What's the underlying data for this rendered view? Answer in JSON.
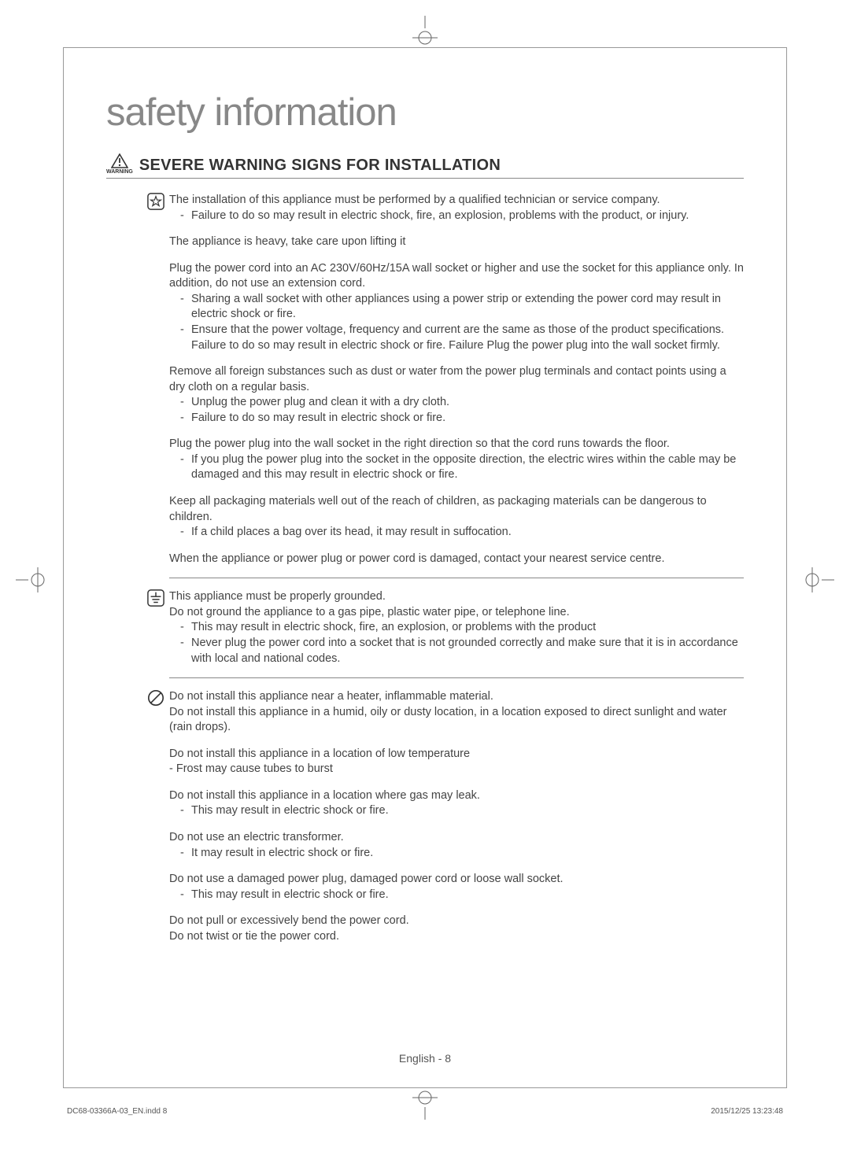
{
  "page": {
    "title": "safety information",
    "title_color": "#888888",
    "title_fontsize": 49
  },
  "section": {
    "warning_label": "WARNING",
    "heading": "SEVERE WARNING SIGNS FOR INSTALLATION"
  },
  "blocks": [
    {
      "icon": "star-box",
      "paragraphs": [
        {
          "text": "The installation of this appliance must be performed by a qualified technician or service company.",
          "subs": [
            "Failure to do so may result in electric shock, fire, an explosion, problems with the product, or injury."
          ]
        },
        {
          "text": "The appliance is heavy, take care upon lifting it",
          "subs": []
        },
        {
          "text": "Plug the power cord into an AC 230V/60Hz/15A wall socket or higher and use the socket for this appliance only. In addition, do not use an extension cord.",
          "subs": [
            "Sharing a wall socket with other appliances using a power strip or extending the power cord may result in electric shock or fire.",
            "Ensure that the power voltage, frequency and current are the same as those of the product specifications. Failure to do so may result in electric shock or fire. Failure Plug the power plug into the wall socket firmly."
          ]
        },
        {
          "text": "Remove all foreign substances such as dust or water from the power plug terminals and contact points using a dry cloth on a regular basis.",
          "subs": [
            "Unplug the power plug and clean it with a dry cloth.",
            "Failure to do so may result in electric shock or fire."
          ]
        },
        {
          "text": "Plug the power plug into the wall socket in the right direction so that the cord runs towards the floor.",
          "subs": [
            "If you plug the power plug into the socket in the opposite direction, the electric wires within the cable may be damaged and this may result in electric shock or fire."
          ]
        },
        {
          "text": "Keep all packaging materials well out of the reach of children, as packaging materials can be dangerous to children.",
          "subs": [
            "If a child places a bag over its head, it may result in suffocation."
          ]
        },
        {
          "text": "When the appliance or power plug or power cord is damaged, contact your nearest service centre.",
          "subs": []
        }
      ]
    },
    {
      "icon": "ground",
      "paragraphs": [
        {
          "text": "This appliance must be properly grounded.\nDo not ground the appliance to a gas pipe, plastic water pipe, or telephone line.",
          "subs": [
            "This may result in electric shock, fire, an explosion, or problems with the product",
            "Never plug the power cord into a socket that is not grounded correctly and make sure that it is in accordance with local and national codes."
          ]
        }
      ]
    },
    {
      "icon": "prohibit",
      "paragraphs": [
        {
          "text": "Do not install this appliance near a heater, inflammable material.\nDo not install this appliance in a humid, oily or dusty location, in a location exposed to direct sunlight and water (rain drops).",
          "subs": []
        },
        {
          "text": "Do not install this appliance in a location of low temperature\n- Frost may cause tubes to burst",
          "subs": []
        },
        {
          "text": "Do not install this appliance in a location where gas may leak.",
          "subs": [
            "This may result in electric shock or fire."
          ]
        },
        {
          "text": "Do not use an electric transformer.",
          "subs": [
            "It may result in electric shock or fire."
          ]
        },
        {
          "text": "Do not use a damaged power plug, damaged power cord or loose wall socket.",
          "subs": [
            "This may result in electric shock or fire."
          ]
        },
        {
          "text": "Do not pull or excessively bend the power cord.\nDo not twist or tie the power cord.",
          "subs": []
        }
      ]
    }
  ],
  "footer": {
    "lang_page": "English - 8",
    "file_ref": "DC68-03366A-03_EN.indd   8",
    "timestamp": "2015/12/25   13:23:48"
  },
  "colors": {
    "text": "#444444",
    "rule": "#888888",
    "title": "#888888"
  }
}
